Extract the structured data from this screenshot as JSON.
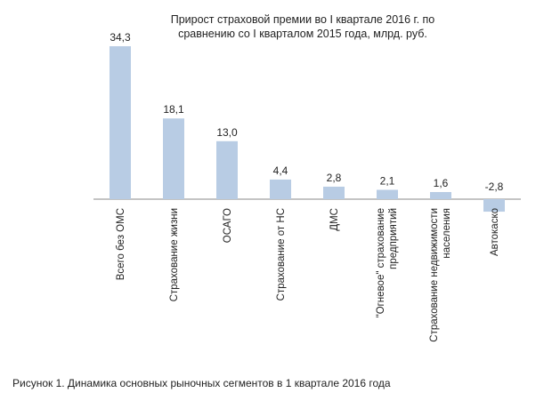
{
  "chart_data": {
    "type": "bar",
    "title_lines": [
      "Прирост страховой премии во I квартале 2016 г. по",
      "сравнению со I кварталом 2015 года, млрд. руб."
    ],
    "categories": [
      [
        "Всего без ОМС"
      ],
      [
        "Страхование жизни"
      ],
      [
        "ОСАГО"
      ],
      [
        "Страхование от НС"
      ],
      [
        "ДМС"
      ],
      [
        "\"Огневое\" страхование",
        "предприятий"
      ],
      [
        "Страхование недвижимости",
        "населения"
      ],
      [
        "Автокаско"
      ]
    ],
    "values": [
      34.3,
      18.1,
      13.0,
      4.4,
      2.8,
      2.1,
      1.6,
      -2.8
    ],
    "value_labels": [
      "34,3",
      "18,1",
      "13,0",
      "4,4",
      "2,8",
      "2,1",
      "1,6",
      "-2,8"
    ],
    "bar_color": "#b8cce4",
    "xlabel": "",
    "ylabel": "",
    "grid": false,
    "legend": "none"
  },
  "caption": "Рисунок 1. Динамика основных рыночных сегментов в 1 квартале 2016 года"
}
